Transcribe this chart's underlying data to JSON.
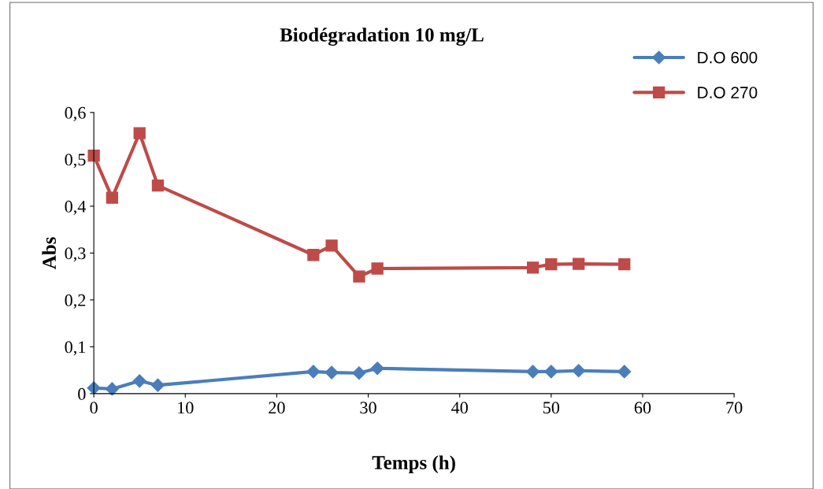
{
  "chart_data": {
    "type": "line",
    "title": "Biodégradation 10 mg/L",
    "xlabel": "Temps (h)",
    "ylabel": "Abs",
    "x": [
      0,
      2,
      5,
      7,
      24,
      26,
      29,
      31,
      48,
      50,
      53,
      58
    ],
    "series": [
      {
        "name": "D.O 600",
        "color": "#4a7ebb",
        "marker": "diamond",
        "values": [
          0.012,
          0.01,
          0.027,
          0.018,
          0.047,
          0.045,
          0.044,
          0.054,
          0.047,
          0.047,
          0.049,
          0.047
        ]
      },
      {
        "name": "D.O 270",
        "color": "#be4b48",
        "marker": "square",
        "values": [
          0.508,
          0.418,
          0.556,
          0.444,
          0.296,
          0.316,
          0.25,
          0.267,
          0.269,
          0.276,
          0.277,
          0.276
        ]
      }
    ],
    "xlim": [
      0,
      70
    ],
    "xticks": [
      0,
      10,
      20,
      30,
      40,
      50,
      60,
      70
    ],
    "ylim": [
      0,
      0.6
    ],
    "yticks": [
      0,
      {
        "value": 0.1,
        "label": "0,1"
      },
      {
        "value": 0.2,
        "label": "0,2"
      },
      {
        "value": 0.3,
        "label": "0,3"
      },
      {
        "value": 0.4,
        "label": "0,4"
      },
      {
        "value": 0.5,
        "label": "0,5"
      },
      {
        "value": 0.6,
        "label": "0,6"
      }
    ],
    "grid": false,
    "legend": "top right",
    "line_style": "solid"
  }
}
